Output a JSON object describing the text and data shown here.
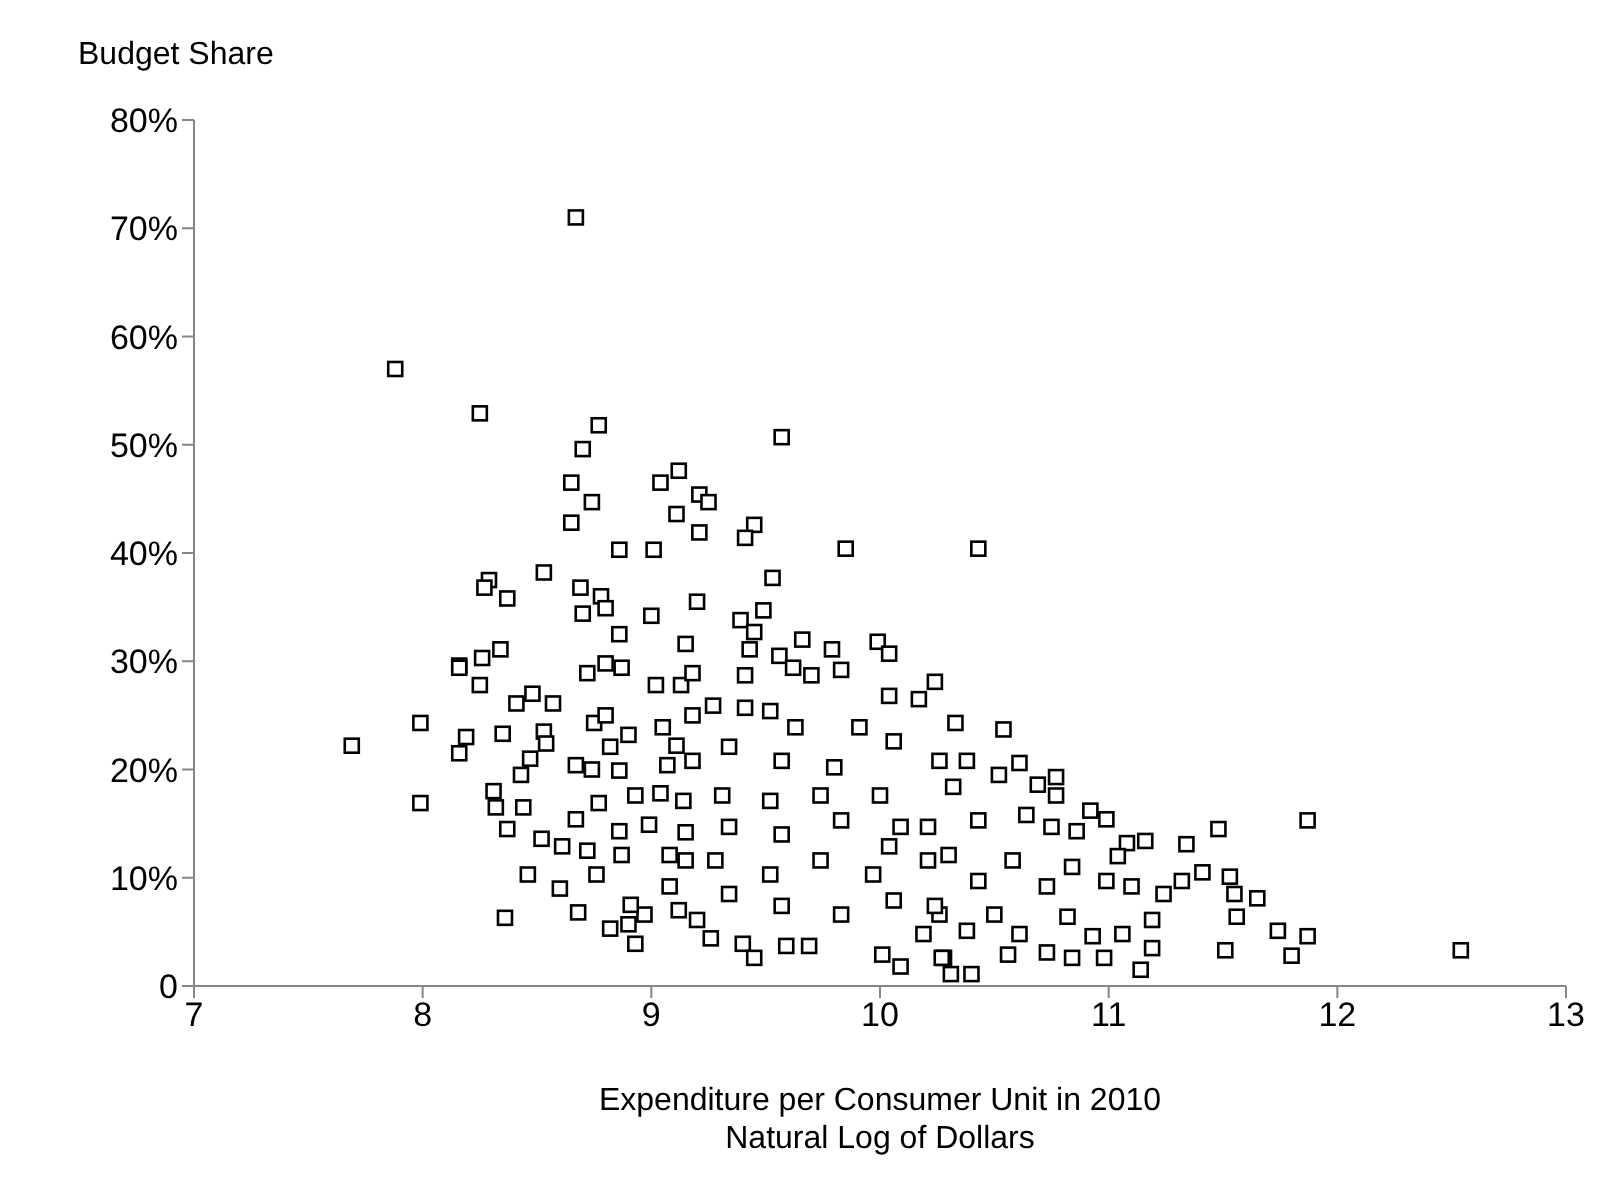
{
  "chart_data": {
    "type": "scatter",
    "xlabel": "Expenditure per Consumer Unit in 2010\nNatural Log of Dollars",
    "ylabel": "Budget Share",
    "marker": "square",
    "grid": false,
    "legend": false,
    "xlim": [
      7,
      13
    ],
    "xticks": [
      7,
      8,
      9,
      10,
      11,
      12,
      13
    ],
    "ylim": [
      0,
      80
    ],
    "yticks": [
      {
        "value": 0,
        "label": "0"
      },
      {
        "value": 10,
        "label": "10%"
      },
      {
        "value": 20,
        "label": "20%"
      },
      {
        "value": 30,
        "label": "30%"
      },
      {
        "value": 40,
        "label": "40%"
      },
      {
        "value": 50,
        "label": "50%"
      },
      {
        "value": 60,
        "label": "60%"
      },
      {
        "value": 70,
        "label": "70%"
      },
      {
        "value": 80,
        "label": "80%"
      }
    ],
    "series": [
      {
        "color": "#000000",
        "x": [
          8.67,
          7.88,
          8.25,
          8.77,
          8.7,
          9.57,
          8.65,
          8.74,
          8.65,
          9.04,
          9.12,
          9.21,
          9.25,
          9.11,
          9.21,
          9.45,
          9.41,
          8.86,
          9.01,
          9.85,
          8.29,
          8.27,
          8.37,
          8.53,
          8.69,
          8.78,
          8.8,
          8.7,
          9.0,
          9.2,
          9.53,
          9.49,
          9.39,
          9.45,
          8.86,
          9.15,
          9.66,
          9.79,
          9.99,
          10.04,
          8.16,
          8.26,
          8.34,
          8.8,
          8.87,
          8.72,
          9.43,
          9.56,
          9.62,
          9.83,
          10.24,
          7.69,
          7.99,
          7.99,
          8.16,
          8.25,
          8.19,
          8.16,
          8.41,
          8.48,
          8.57,
          8.35,
          8.53,
          8.54,
          8.47,
          8.43,
          8.31,
          8.32,
          8.37,
          8.44,
          8.52,
          8.61,
          8.72,
          8.46,
          8.6,
          8.36,
          8.68,
          8.67,
          8.77,
          8.67,
          8.74,
          8.75,
          8.8,
          8.9,
          8.82,
          8.86,
          8.93,
          8.86,
          8.87,
          8.76,
          8.82,
          8.9,
          8.93,
          8.97,
          8.91,
          9.02,
          9.13,
          9.18,
          9.27,
          9.18,
          9.05,
          9.11,
          9.07,
          9.18,
          9.04,
          9.14,
          8.99,
          9.15,
          9.08,
          9.15,
          9.08,
          9.12,
          9.2,
          9.26,
          9.4,
          9.45,
          9.59,
          9.69,
          10.01,
          10.09,
          10.28,
          9.41,
          9.41,
          9.52,
          9.7,
          10.04,
          10.17,
          9.34,
          9.57,
          9.8,
          9.31,
          9.52,
          9.74,
          10.0,
          9.34,
          9.57,
          9.83,
          10.09,
          9.28,
          9.52,
          9.74,
          9.97,
          10.21,
          9.34,
          9.57,
          9.83,
          10.06,
          10.26,
          9.63,
          9.91,
          10.06,
          10.26,
          10.04,
          10.43,
          10.33,
          10.54,
          10.61,
          10.77,
          10.69,
          10.77,
          10.92,
          10.99,
          10.75,
          10.86,
          11.08,
          11.16,
          11.34,
          11.48,
          11.87,
          11.41,
          11.53,
          11.55,
          11.65,
          11.32,
          11.24,
          11.56,
          11.74,
          11.87,
          11.8,
          11.51,
          12.54,
          11.14,
          11.19,
          10.98,
          10.84,
          10.73,
          10.56,
          10.4,
          10.31,
          10.27,
          10.19,
          10.38,
          10.61,
          10.93,
          11.06,
          11.19,
          10.82,
          10.5,
          10.24,
          10.43,
          10.73,
          10.99,
          11.1,
          10.3,
          10.58,
          10.84,
          11.04,
          10.21,
          10.43,
          10.64,
          10.32,
          10.52,
          10.38
        ],
        "values": [
          71.0,
          57.0,
          52.9,
          51.8,
          49.6,
          50.7,
          46.5,
          44.7,
          42.8,
          46.5,
          47.6,
          45.4,
          44.7,
          43.6,
          41.9,
          42.6,
          41.4,
          40.3,
          40.3,
          40.4,
          37.5,
          36.8,
          35.8,
          38.2,
          36.8,
          36.0,
          34.9,
          34.4,
          34.2,
          35.5,
          37.7,
          34.7,
          33.8,
          32.7,
          32.5,
          31.6,
          32.0,
          31.1,
          31.8,
          30.7,
          29.6,
          30.3,
          31.1,
          29.8,
          29.4,
          28.9,
          31.1,
          30.5,
          29.4,
          29.2,
          28.1,
          22.2,
          24.3,
          16.9,
          29.4,
          27.8,
          23.0,
          21.5,
          26.1,
          27.0,
          26.1,
          23.3,
          23.5,
          22.4,
          21.0,
          19.5,
          18.0,
          16.5,
          14.5,
          16.5,
          13.6,
          12.9,
          12.5,
          10.3,
          9.0,
          6.3,
          6.8,
          15.4,
          16.9,
          20.4,
          20.0,
          24.3,
          25.0,
          23.2,
          22.1,
          19.9,
          17.6,
          14.3,
          12.1,
          10.3,
          5.3,
          5.7,
          3.9,
          6.6,
          7.5,
          27.8,
          27.8,
          28.9,
          25.9,
          25.0,
          23.9,
          22.2,
          20.4,
          20.8,
          17.8,
          17.1,
          14.9,
          14.2,
          12.1,
          11.6,
          9.2,
          7.0,
          6.1,
          4.4,
          3.9,
          2.6,
          3.7,
          3.7,
          2.9,
          1.8,
          2.6,
          28.7,
          25.7,
          25.4,
          28.7,
          26.8,
          26.5,
          22.1,
          20.8,
          20.2,
          17.6,
          17.1,
          17.6,
          17.6,
          14.7,
          14.0,
          15.3,
          14.7,
          11.6,
          10.3,
          11.6,
          10.3,
          11.6,
          8.5,
          7.4,
          6.6,
          7.9,
          6.6,
          23.9,
          23.9,
          22.6,
          20.8,
          12.9,
          40.4,
          24.3,
          23.7,
          20.6,
          19.3,
          18.6,
          17.6,
          16.2,
          15.4,
          14.7,
          14.3,
          13.2,
          13.4,
          13.1,
          14.5,
          15.3,
          10.5,
          10.1,
          8.5,
          8.1,
          9.7,
          8.5,
          6.4,
          5.1,
          4.6,
          2.8,
          3.3,
          3.3,
          1.5,
          3.5,
          2.6,
          2.6,
          3.1,
          2.9,
          1.1,
          1.1,
          2.6,
          4.8,
          5.1,
          4.8,
          4.6,
          4.8,
          6.1,
          6.4,
          6.6,
          7.4,
          9.7,
          9.2,
          9.7,
          9.2,
          12.1,
          11.6,
          11.0,
          12.0,
          14.7,
          15.3,
          15.8,
          18.4,
          19.5,
          20.8
        ]
      }
    ]
  }
}
